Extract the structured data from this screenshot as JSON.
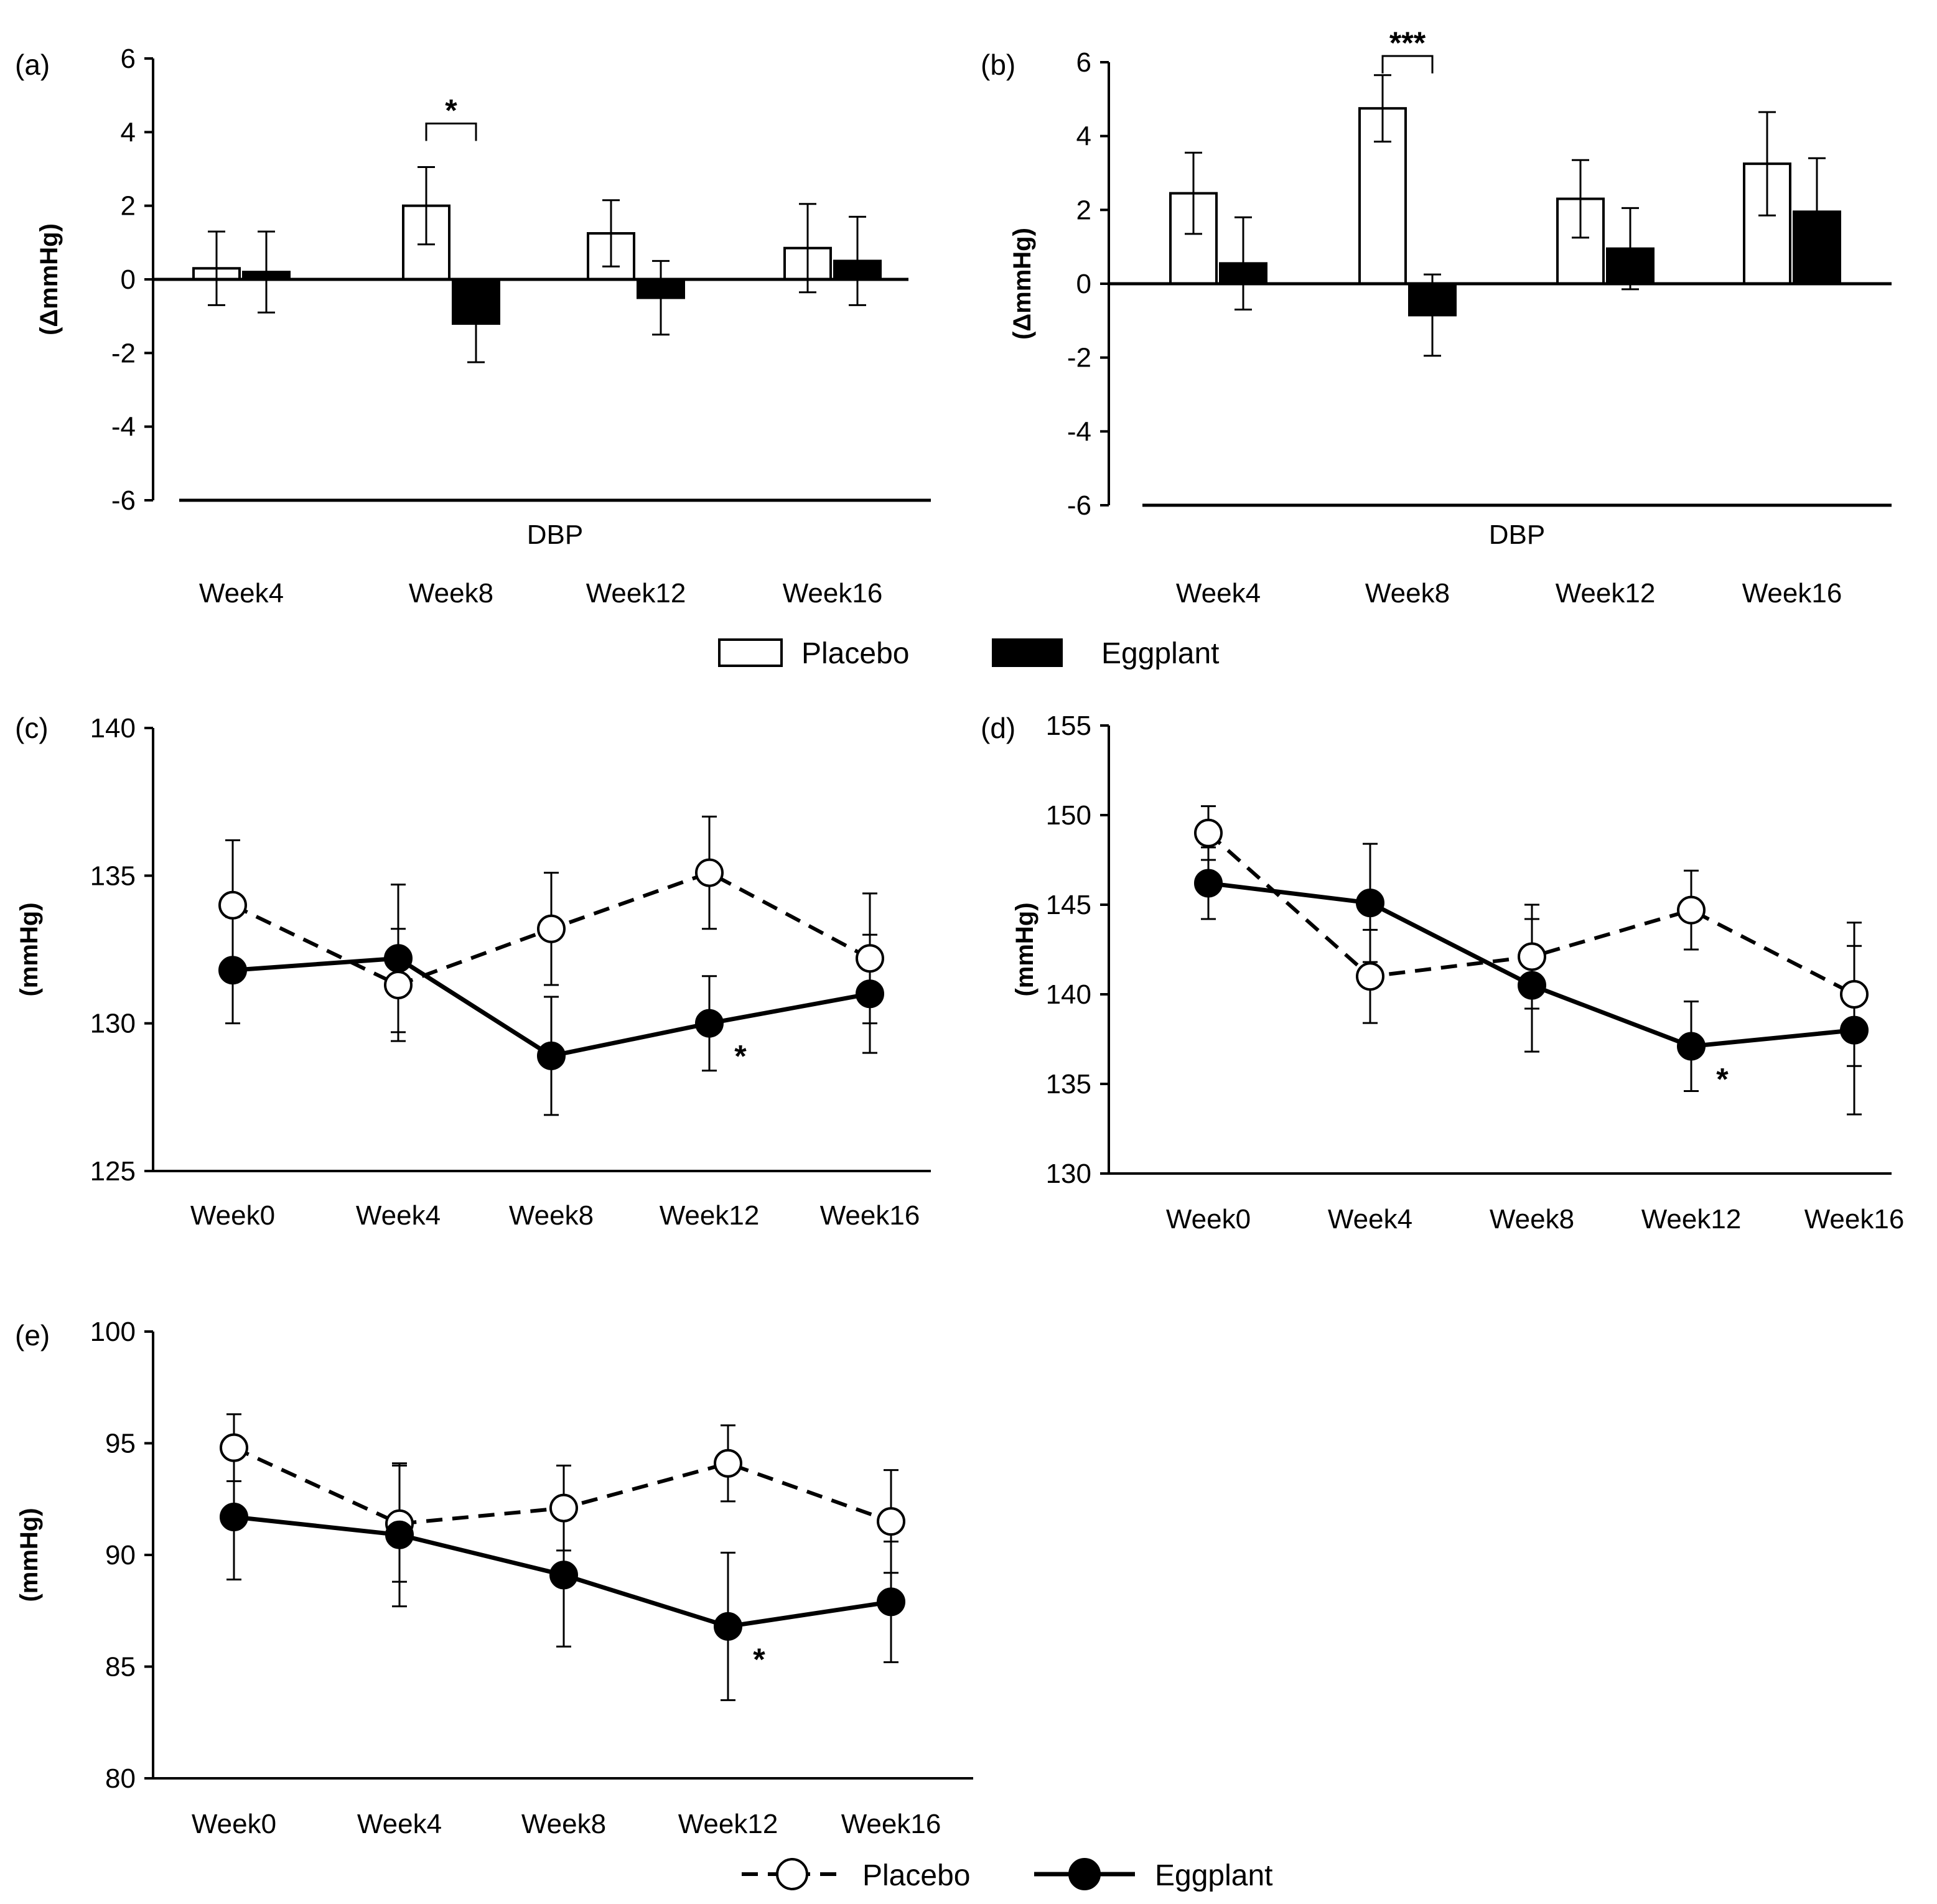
{
  "colors": {
    "ink": "#000000",
    "paper": "#ffffff"
  },
  "legend_bars": {
    "placebo": "Placebo",
    "eggplant": "Eggplant"
  },
  "legend_lines": {
    "placebo": "Placebo",
    "eggplant": "Eggplant"
  },
  "chart_data": [
    {
      "id": "a",
      "panel_label": "(a)",
      "type": "bar",
      "ylabel": "(ΔmmHg)",
      "xlabel": "DBP",
      "categories": [
        "Week4",
        "Week8",
        "Week12",
        "Week16"
      ],
      "ylim": [
        -6,
        6
      ],
      "yticks": [
        6,
        4,
        2,
        0,
        -2,
        -4,
        -6
      ],
      "series": [
        {
          "name": "Placebo",
          "values": [
            0.3,
            2.0,
            1.25,
            0.85
          ],
          "err": [
            1.0,
            1.05,
            0.9,
            1.2
          ]
        },
        {
          "name": "Eggplant",
          "values": [
            0.2,
            -1.2,
            -0.5,
            0.5
          ],
          "err": [
            1.1,
            1.05,
            1.0,
            1.2
          ]
        }
      ],
      "annotations": [
        {
          "text": "*",
          "category": 1
        }
      ]
    },
    {
      "id": "b",
      "panel_label": "(b)",
      "type": "bar",
      "ylabel": "(ΔmmHg)",
      "xlabel": "DBP",
      "categories": [
        "Week4",
        "Week8",
        "Week12",
        "Week16"
      ],
      "ylim": [
        -6,
        6
      ],
      "yticks": [
        6,
        4,
        2,
        0,
        -2,
        -4,
        -6
      ],
      "series": [
        {
          "name": "Placebo",
          "values": [
            2.45,
            4.75,
            2.3,
            3.25
          ],
          "err": [
            1.1,
            0.9,
            1.05,
            1.4
          ]
        },
        {
          "name": "Eggplant",
          "values": [
            0.55,
            -0.85,
            0.95,
            1.95
          ],
          "err": [
            1.25,
            1.1,
            1.1,
            1.45
          ]
        }
      ],
      "annotations": [
        {
          "text": "***",
          "category": 1
        }
      ]
    },
    {
      "id": "c",
      "panel_label": "(c)",
      "type": "line",
      "ylabel": "(mmHg)",
      "categories": [
        "Week0",
        "Week4",
        "Week8",
        "Week12",
        "Week16"
      ],
      "ylim": [
        125,
        140
      ],
      "yticks": [
        140,
        135,
        130,
        125
      ],
      "series": [
        {
          "name": "Placebo",
          "values": [
            134.0,
            131.3,
            133.2,
            135.1,
            132.2
          ],
          "err": [
            2.2,
            1.9,
            1.9,
            1.9,
            2.2
          ]
        },
        {
          "name": "Eggplant",
          "values": [
            131.8,
            132.2,
            128.9,
            130.0,
            131.0
          ],
          "err": [
            1.8,
            2.5,
            2.0,
            1.6,
            2.0
          ]
        }
      ],
      "annotations": [
        {
          "text": "*",
          "category": 3
        }
      ]
    },
    {
      "id": "d",
      "panel_label": "(d)",
      "type": "line",
      "ylabel": "(mmHg)",
      "categories": [
        "Week0",
        "Week4",
        "Week8",
        "Week12",
        "Week16"
      ],
      "ylim": [
        130,
        155
      ],
      "yticks": [
        155,
        150,
        145,
        140,
        135,
        130
      ],
      "series": [
        {
          "name": "Placebo",
          "values": [
            149.0,
            141.0,
            142.1,
            144.7,
            140.0
          ],
          "err": [
            1.5,
            2.6,
            2.9,
            2.2,
            4.0
          ]
        },
        {
          "name": "Eggplant",
          "values": [
            146.2,
            145.1,
            140.5,
            137.1,
            138.0
          ],
          "err": [
            2.0,
            3.3,
            3.7,
            2.5,
            4.7
          ]
        }
      ],
      "annotations": [
        {
          "text": "*",
          "category": 3
        }
      ]
    },
    {
      "id": "e",
      "panel_label": "(e)",
      "type": "line",
      "ylabel": "(mmHg)",
      "categories": [
        "Week0",
        "Week4",
        "Week8",
        "Week12",
        "Week16"
      ],
      "ylim": [
        80,
        100
      ],
      "yticks": [
        100,
        95,
        90,
        85,
        80
      ],
      "series": [
        {
          "name": "Placebo",
          "values": [
            94.8,
            91.4,
            92.1,
            94.1,
            91.5
          ],
          "err": [
            1.5,
            2.6,
            1.9,
            1.7,
            2.3
          ]
        },
        {
          "name": "Eggplant",
          "values": [
            91.7,
            90.9,
            89.1,
            86.8,
            87.9
          ],
          "err": [
            2.8,
            3.2,
            3.2,
            3.3,
            2.7
          ]
        }
      ],
      "annotations": [
        {
          "text": "*",
          "category": 3
        }
      ]
    }
  ]
}
